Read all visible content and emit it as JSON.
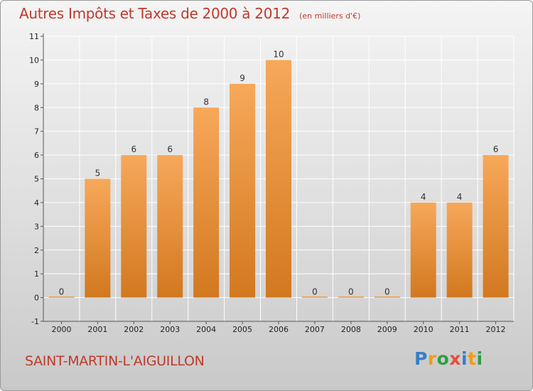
{
  "header": {
    "title": "Autres Impôts et Taxes de 2000 à 2012",
    "subtitle": "(en milliers d'€)"
  },
  "footer": {
    "commune": "SAINT-MARTIN-L'AIGUILLON",
    "logo_letters": [
      {
        "ch": "P",
        "color": "#3a7fc4"
      },
      {
        "ch": "r",
        "color": "#f39c12"
      },
      {
        "ch": "o",
        "color": "#2e9f45"
      },
      {
        "ch": "x",
        "color": "#e74c3c"
      },
      {
        "ch": "i",
        "color": "#3a7fc4"
      },
      {
        "ch": "t",
        "color": "#f39c12"
      },
      {
        "ch": "i",
        "color": "#2e9f45"
      }
    ]
  },
  "colors": {
    "bar_light": "#f7a85a",
    "bar_dark": "#d2781f",
    "grid": "#ffffff",
    "title": "#c0392b"
  },
  "chart_data": {
    "type": "bar",
    "title": "Autres Impôts et Taxes de 2000 à 2012",
    "subtitle": "(en milliers d'€)",
    "categories": [
      "2000",
      "2001",
      "2002",
      "2003",
      "2004",
      "2005",
      "2006",
      "2007",
      "2008",
      "2009",
      "2010",
      "2011",
      "2012"
    ],
    "values": [
      0,
      5,
      6,
      6,
      8,
      9,
      10,
      0,
      0,
      0,
      4,
      4,
      6
    ],
    "data_labels": [
      "0",
      "5",
      "6",
      "6",
      "8",
      "9",
      "10",
      "0",
      "0",
      "0",
      "4",
      "4",
      "6"
    ],
    "ylim": [
      -1,
      11
    ],
    "yticks": [
      "-1",
      "0",
      "1",
      "2",
      "3",
      "4",
      "5",
      "6",
      "7",
      "8",
      "9",
      "10",
      "11"
    ],
    "grid": true
  }
}
